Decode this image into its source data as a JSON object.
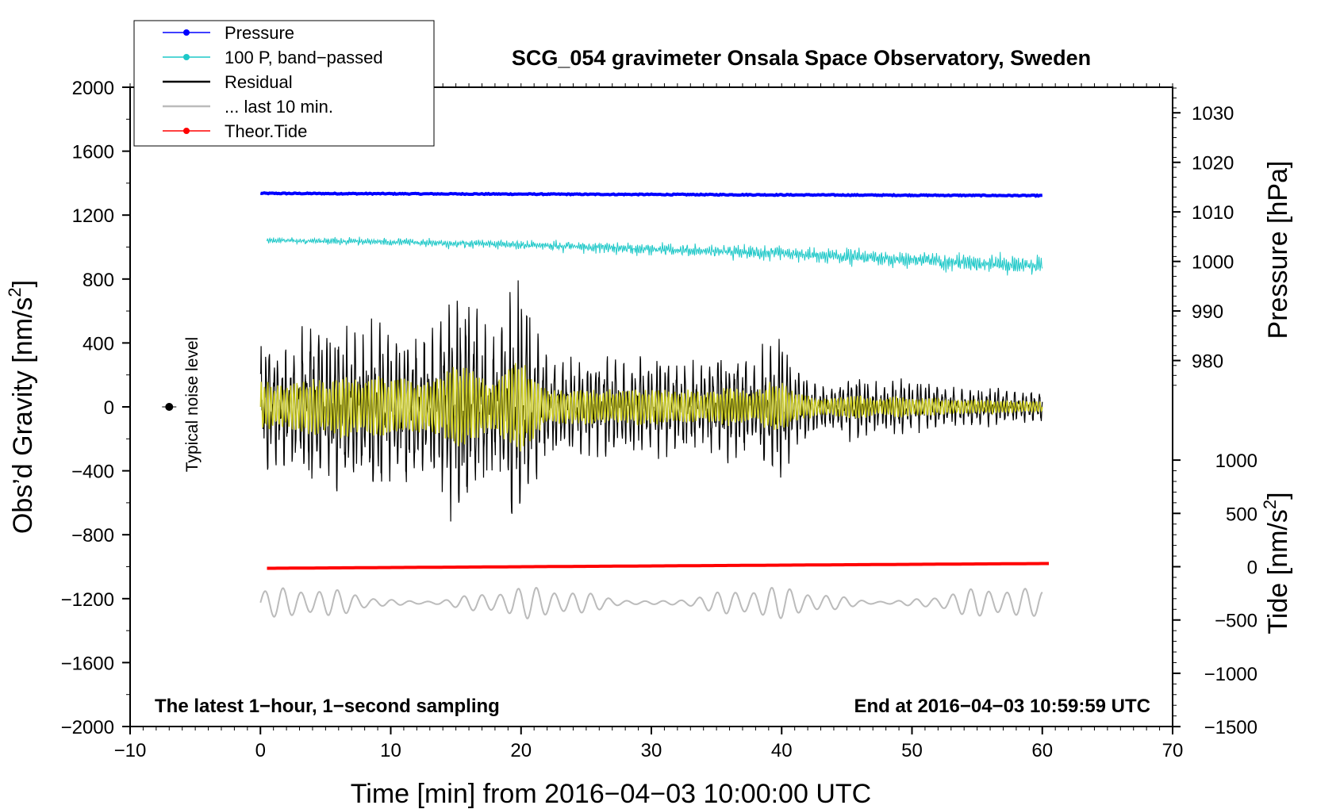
{
  "chart_data": {
    "type": "line",
    "title": "SCG_054 gravimeter Onsala Space Observatory, Sweden",
    "xlabel": "Time [min] from 2016−04−03 10:00:00 UTC",
    "ylabel_left": "Obs’d Gravity [nm/s",
    "ylabel_left_sup": "2",
    "ylabel_left_end": "]",
    "ylabel_right_top": "Pressure [hPa]",
    "ylabel_right_bottom": "Tide [nm/s",
    "ylabel_right_bottom_sup": "2",
    "ylabel_right_bottom_end": "]",
    "xlim": [
      -10,
      70
    ],
    "ylim_left": [
      -2000,
      2000
    ],
    "x_ticks": [
      -10,
      0,
      10,
      20,
      30,
      40,
      50,
      60,
      70
    ],
    "x_tick_labels": [
      "−10",
      "0",
      "10",
      "20",
      "30",
      "40",
      "50",
      "60",
      "70"
    ],
    "y_left_ticks": [
      2000,
      1600,
      1200,
      800,
      400,
      0,
      -400,
      -800,
      -1200,
      -1600,
      -2000
    ],
    "y_left_tick_labels": [
      "2000",
      "1600",
      "1200",
      "800",
      "400",
      "0",
      "−400",
      "−800",
      "−1200",
      "−1600",
      "−2000"
    ],
    "pressure_axis": {
      "ticks": [
        1030,
        1020,
        1010,
        1000,
        990,
        980
      ],
      "tick_labels": [
        "1030",
        "1020",
        "1010",
        "1000",
        "990",
        "980"
      ],
      "gravity_equivalent_at_1030": 1840,
      "gravity_equivalent_per_hPa": 31
    },
    "tide_axis": {
      "ticks": [
        1000,
        500,
        0,
        -500,
        -1000,
        -1500
      ],
      "tick_labels": [
        "1000",
        "500",
        "0",
        "−500",
        "−1000",
        "−1500"
      ],
      "gravity_equivalent_at_0": -1000,
      "gravity_per_tide_unit": 0.667
    },
    "series": [
      {
        "name": "Pressure",
        "color": "#0000ff",
        "kind": "thick-line",
        "x_range": [
          0,
          60
        ],
        "gravity_units": {
          "start": 1336,
          "end": 1322
        }
      },
      {
        "name": "100 P, band−passed",
        "color": "#1ec8c8",
        "kind": "noisy-line",
        "x_range": [
          0,
          60
        ],
        "gravity_units": {
          "start": 1040,
          "end": 880,
          "amplitude": 40
        }
      },
      {
        "name": "Residual",
        "color": "#000000",
        "kind": "oscillation",
        "x_range": [
          0,
          60
        ],
        "gravity_units": {
          "center": 0,
          "peak_positive": 830,
          "peak_negative": -800
        }
      },
      {
        "name": "Filtered residual",
        "color": "#cccc22",
        "kind": "oscillation",
        "x_range": [
          0,
          60
        ],
        "gravity_units": {
          "center": 0,
          "peak": 300
        }
      },
      {
        "name": "... last 10 min.",
        "color": "#bbbbbb",
        "kind": "oscillation",
        "x_range": [
          0,
          60
        ],
        "gravity_units": {
          "center": -1225,
          "amplitude": 100
        }
      },
      {
        "name": "Theor.Tide",
        "color": "#ff0000",
        "kind": "thick-line",
        "x_range": [
          0.5,
          60.5
        ],
        "gravity_units": {
          "start": -1010,
          "end": -980
        }
      }
    ],
    "envelope": [
      [
        0,
        0.45
      ],
      [
        1,
        0.4
      ],
      [
        2,
        0.35
      ],
      [
        3,
        0.45
      ],
      [
        4,
        0.5
      ],
      [
        5,
        0.45
      ],
      [
        6,
        0.55
      ],
      [
        7,
        0.5
      ],
      [
        8,
        0.45
      ],
      [
        9,
        0.55
      ],
      [
        10,
        0.45
      ],
      [
        11,
        0.5
      ],
      [
        12,
        0.45
      ],
      [
        13,
        0.45
      ],
      [
        14,
        0.55
      ],
      [
        15,
        0.75
      ],
      [
        16,
        0.7
      ],
      [
        17,
        0.5
      ],
      [
        18,
        0.4
      ],
      [
        19,
        0.65
      ],
      [
        20,
        0.85
      ],
      [
        21,
        0.55
      ],
      [
        22,
        0.3
      ],
      [
        23,
        0.3
      ],
      [
        24,
        0.3
      ],
      [
        25,
        0.3
      ],
      [
        26,
        0.3
      ],
      [
        27,
        0.3
      ],
      [
        28,
        0.28
      ],
      [
        29,
        0.32
      ],
      [
        30,
        0.3
      ],
      [
        31,
        0.3
      ],
      [
        32,
        0.25
      ],
      [
        33,
        0.3
      ],
      [
        34,
        0.25
      ],
      [
        35,
        0.3
      ],
      [
        36,
        0.35
      ],
      [
        37,
        0.3
      ],
      [
        38,
        0.25
      ],
      [
        39,
        0.45
      ],
      [
        40,
        0.45
      ],
      [
        41,
        0.25
      ],
      [
        42,
        0.2
      ],
      [
        43,
        0.15
      ],
      [
        44,
        0.15
      ],
      [
        45,
        0.2
      ],
      [
        46,
        0.2
      ],
      [
        47,
        0.15
      ],
      [
        48,
        0.15
      ],
      [
        49,
        0.2
      ],
      [
        50,
        0.15
      ],
      [
        51,
        0.15
      ],
      [
        52,
        0.15
      ],
      [
        53,
        0.12
      ],
      [
        54,
        0.12
      ],
      [
        55,
        0.12
      ],
      [
        56,
        0.12
      ],
      [
        57,
        0.12
      ],
      [
        58,
        0.1
      ],
      [
        59,
        0.1
      ],
      [
        60,
        0.1
      ]
    ],
    "noise_level": {
      "label": "Typical noise level",
      "x": -7,
      "y": 0,
      "error": 50
    },
    "footer_left": "The latest 1−hour, 1−second sampling",
    "footer_right": "End at 2016−04−03 10:59:59 UTC",
    "legend": [
      {
        "label": "Pressure",
        "color": "#0000ff",
        "marker": true
      },
      {
        "label": "100 P, band−passed",
        "color": "#1ec8c8",
        "marker": true
      },
      {
        "label": "Residual",
        "color": "#000000",
        "marker": false
      },
      {
        "label": "... last 10 min.",
        "color": "#bbbbbb",
        "marker": false
      },
      {
        "label": "Theor.Tide",
        "color": "#ff0000",
        "marker": true
      }
    ],
    "legend_position": "top-left"
  }
}
